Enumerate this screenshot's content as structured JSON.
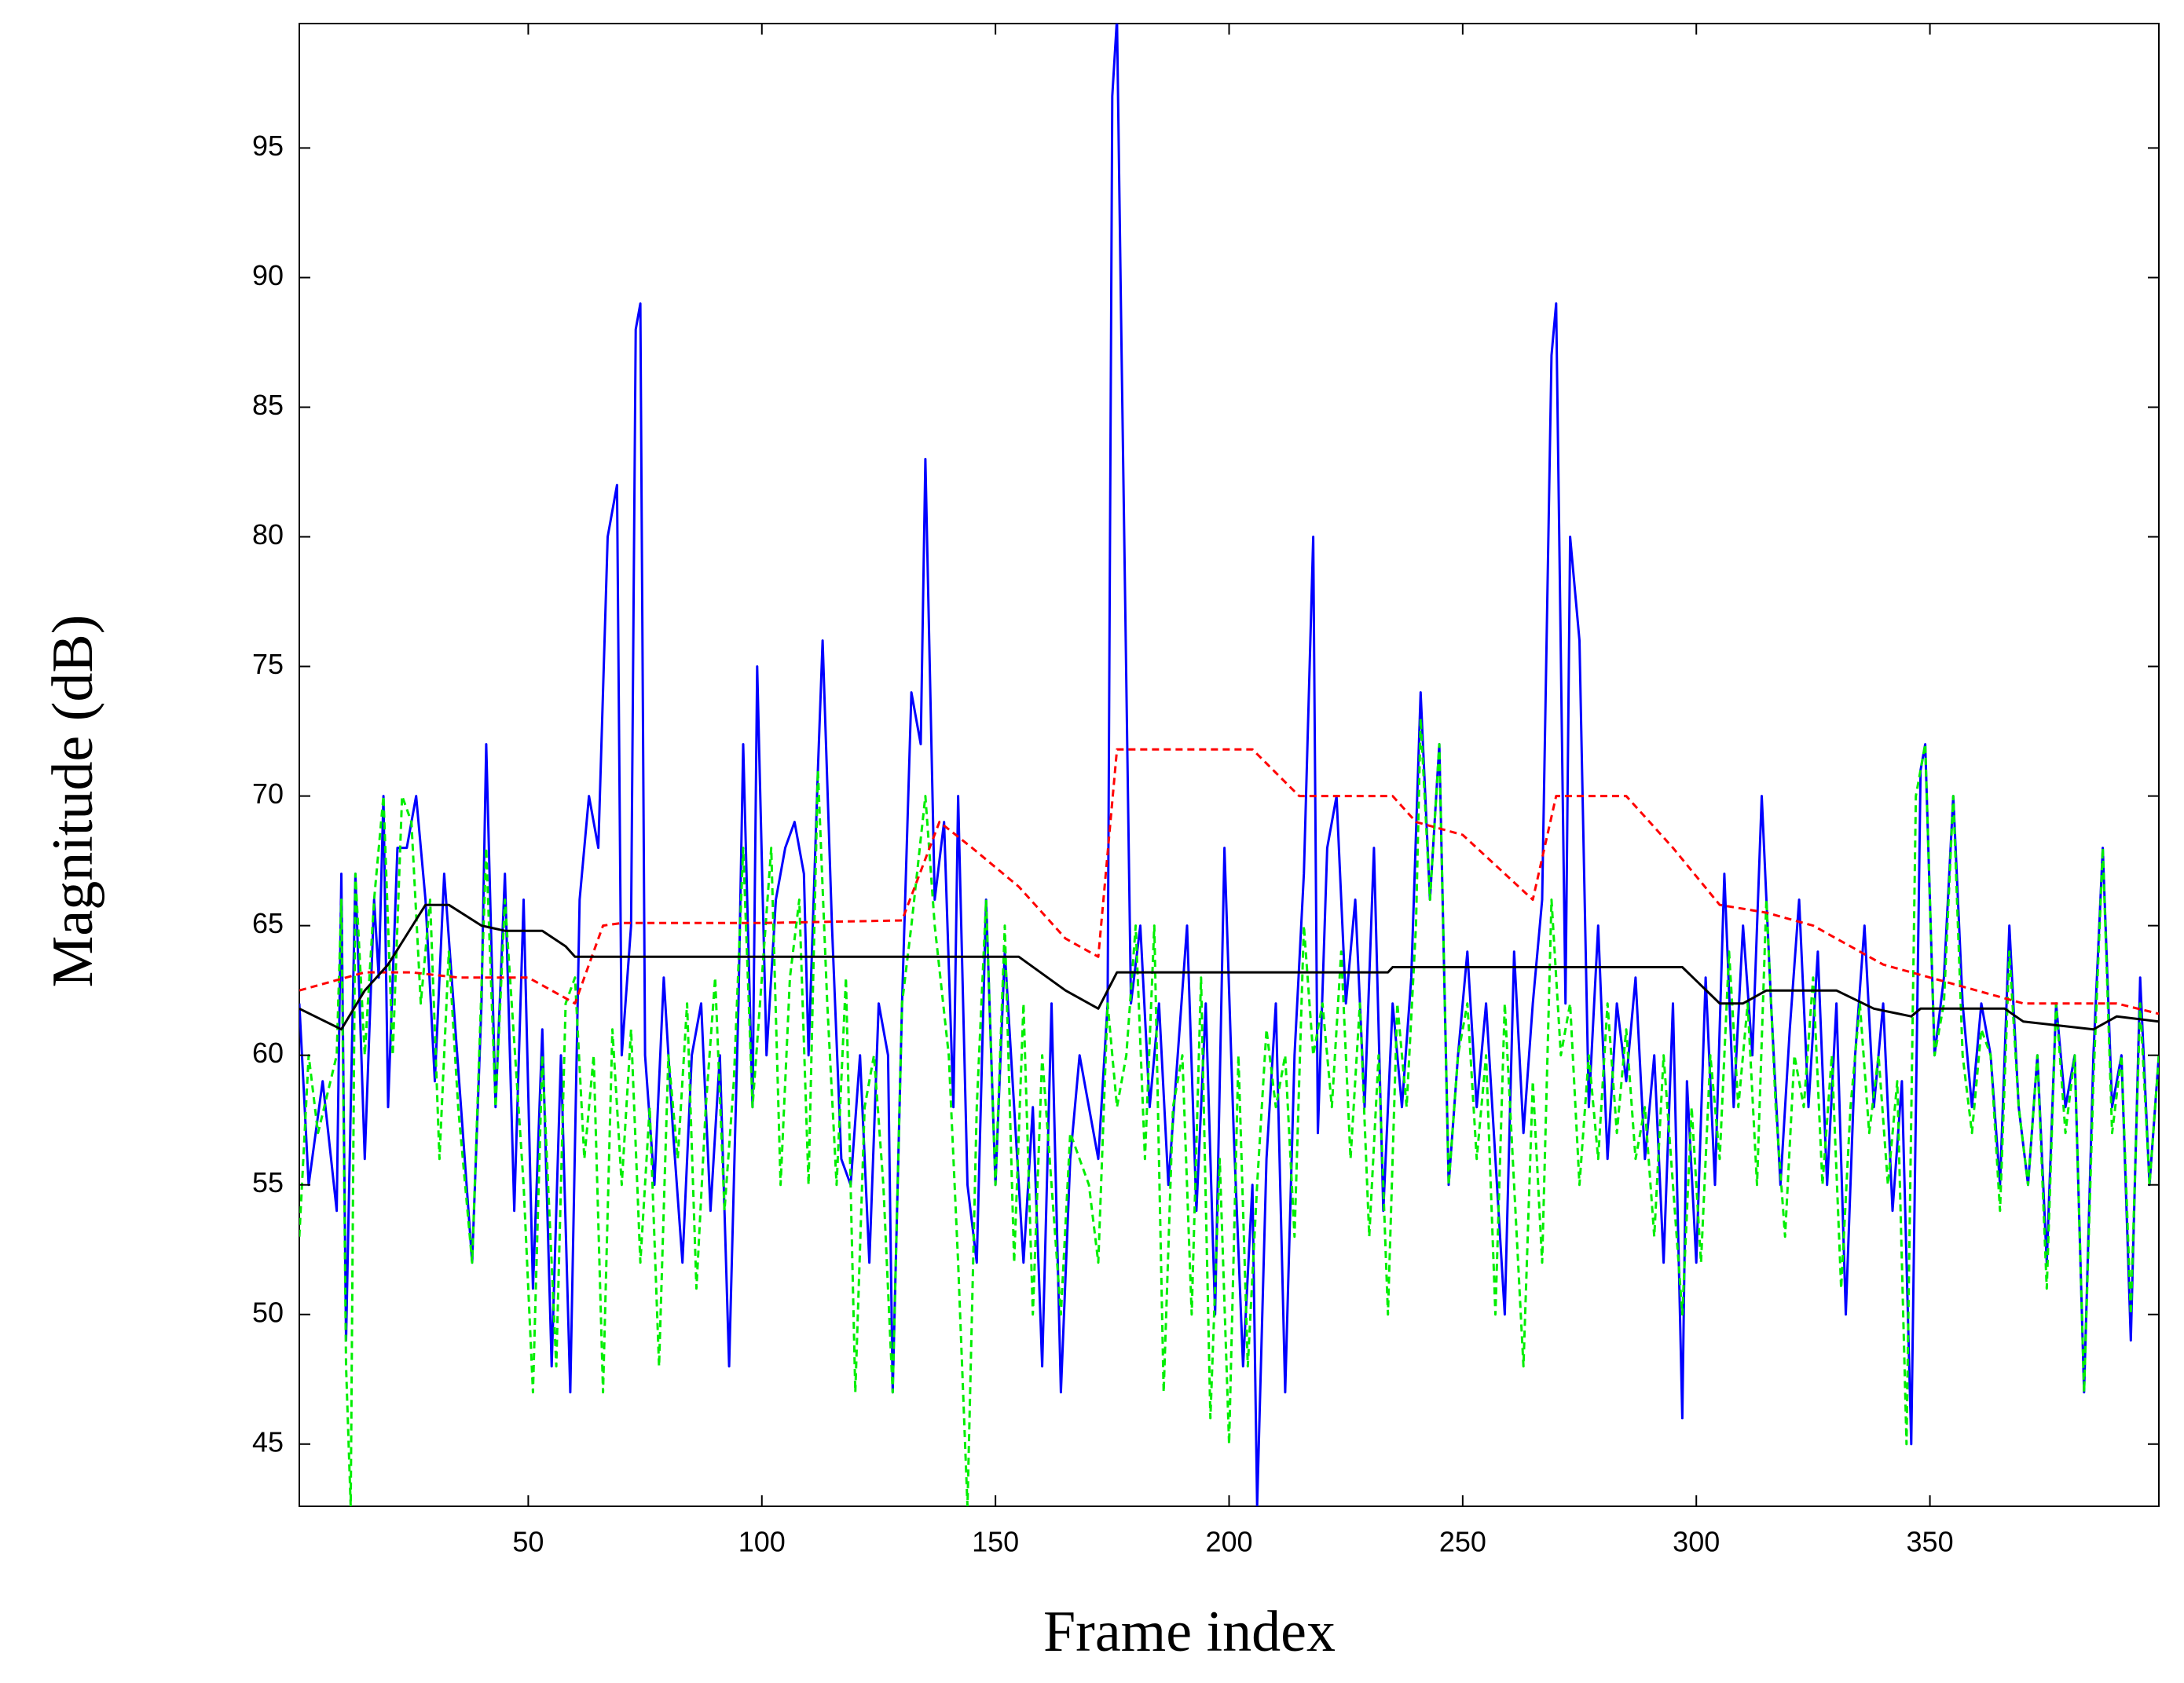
{
  "chart_data": {
    "type": "line",
    "x_label": "Frame index",
    "y_label": "Magnitude (dB)",
    "xlim": [
      1,
      399
    ],
    "ylim": [
      42.6,
      99.8
    ],
    "xticks": [
      50,
      100,
      150,
      200,
      250,
      300,
      350
    ],
    "yticks": [
      45,
      50,
      55,
      60,
      65,
      70,
      75,
      80,
      85,
      90,
      95
    ],
    "grid": false,
    "series": [
      {
        "color": "#0000ff",
        "line_style": "solid",
        "x": [
          1,
          3,
          6,
          9,
          10,
          11,
          13,
          15,
          17,
          18,
          19,
          20,
          22,
          24,
          26,
          28,
          30,
          32,
          34,
          36,
          38,
          40,
          41,
          43,
          45,
          47,
          49,
          51,
          53,
          55,
          57,
          59,
          61,
          63,
          65,
          67,
          69,
          70,
          72,
          73,
          74,
          75,
          77,
          79,
          81,
          83,
          85,
          87,
          89,
          91,
          93,
          95,
          96,
          98,
          99,
          101,
          103,
          105,
          107,
          109,
          110,
          112,
          113,
          115,
          117,
          119,
          121,
          123,
          125,
          127,
          128,
          130,
          132,
          134,
          135,
          137,
          139,
          141,
          142,
          144,
          146,
          148,
          150,
          152,
          154,
          156,
          158,
          160,
          162,
          164,
          166,
          168,
          170,
          172,
          174,
          175,
          176,
          177,
          179,
          181,
          183,
          185,
          187,
          189,
          191,
          193,
          195,
          197,
          199,
          201,
          203,
          205,
          206,
          208,
          210,
          212,
          214,
          216,
          218,
          219,
          221,
          223,
          225,
          227,
          229,
          231,
          233,
          235,
          237,
          239,
          241,
          243,
          245,
          247,
          249,
          251,
          253,
          255,
          257,
          259,
          261,
          263,
          265,
          267,
          269,
          270,
          272,
          273,
          275,
          277,
          279,
          281,
          283,
          285,
          287,
          289,
          291,
          293,
          295,
          297,
          298,
          300,
          302,
          304,
          306,
          308,
          310,
          312,
          314,
          316,
          318,
          320,
          322,
          324,
          326,
          328,
          330,
          332,
          334,
          336,
          338,
          340,
          342,
          344,
          346,
          348,
          349,
          351,
          353,
          355,
          357,
          359,
          361,
          363,
          365,
          367,
          369,
          371,
          373,
          375,
          377,
          379,
          381,
          383,
          385,
          387,
          389,
          391,
          393,
          395,
          397,
          399
        ],
        "values": [
          62,
          55,
          59,
          54,
          67,
          49,
          67,
          56,
          66,
          63,
          70,
          58,
          68,
          68,
          70,
          66,
          59,
          67,
          62,
          57,
          52,
          62,
          72,
          58,
          67,
          54,
          66,
          51,
          61,
          48,
          60,
          47,
          66,
          70,
          68,
          80,
          82,
          60,
          65,
          88,
          89,
          60,
          55,
          63,
          57,
          52,
          60,
          62,
          54,
          60,
          48,
          62,
          72,
          58,
          75,
          60,
          66,
          68,
          69,
          67,
          60,
          71,
          76,
          65,
          56,
          55,
          60,
          52,
          62,
          60,
          47,
          62,
          74,
          72,
          83,
          66,
          69,
          58,
          70,
          55,
          52,
          66,
          55,
          64,
          58,
          52,
          58,
          48,
          62,
          47,
          56,
          60,
          58,
          56,
          62,
          97,
          100,
          87,
          62,
          65,
          58,
          62,
          55,
          60,
          65,
          54,
          62,
          50,
          68,
          57,
          48,
          55,
          42.6,
          56,
          62,
          47,
          60,
          67,
          80,
          57,
          68,
          70,
          62,
          66,
          58,
          68,
          54,
          62,
          58,
          63,
          74,
          66,
          72,
          55,
          60,
          64,
          58,
          62,
          56,
          50,
          64,
          57,
          62,
          66,
          87,
          89,
          62,
          80,
          76,
          58,
          65,
          56,
          62,
          59,
          63,
          56,
          60,
          52,
          62,
          46,
          59,
          52,
          63,
          55,
          67,
          58,
          65,
          60,
          70,
          62,
          55,
          61,
          66,
          58,
          64,
          55,
          62,
          50,
          60,
          65,
          58,
          62,
          54,
          59,
          45,
          71,
          72,
          60,
          63,
          70,
          62,
          58,
          62,
          60,
          55,
          65,
          58,
          55,
          60,
          52,
          62,
          58,
          60,
          47,
          60,
          68,
          58,
          60,
          49,
          63,
          55,
          60
        ]
      },
      {
        "color": "#00ee00",
        "line_style": "dashed",
        "x": [
          1,
          3,
          5,
          9,
          10,
          11,
          12,
          13,
          15,
          17,
          19,
          21,
          23,
          25,
          27,
          29,
          31,
          33,
          35,
          38,
          41,
          43,
          45,
          49,
          51,
          53,
          56,
          58,
          60,
          62,
          64,
          66,
          68,
          70,
          72,
          74,
          76,
          78,
          80,
          82,
          84,
          86,
          88,
          90,
          92,
          94,
          96,
          98,
          100,
          102,
          104,
          106,
          108,
          110,
          112,
          114,
          116,
          118,
          120,
          122,
          124,
          126,
          128,
          130,
          132,
          135,
          137,
          140,
          142,
          144,
          146,
          148,
          150,
          152,
          154,
          156,
          158,
          160,
          164,
          166,
          168,
          170,
          172,
          174,
          176,
          178,
          180,
          182,
          184,
          186,
          188,
          190,
          192,
          194,
          196,
          198,
          200,
          202,
          204,
          206,
          208,
          210,
          212,
          214,
          216,
          218,
          220,
          222,
          224,
          226,
          228,
          230,
          232,
          234,
          236,
          238,
          240,
          241,
          243,
          245,
          247,
          249,
          251,
          253,
          255,
          257,
          259,
          261,
          263,
          265,
          267,
          269,
          271,
          273,
          275,
          277,
          279,
          281,
          283,
          285,
          287,
          289,
          291,
          293,
          295,
          297,
          299,
          301,
          303,
          305,
          307,
          309,
          311,
          313,
          315,
          317,
          319,
          321,
          323,
          325,
          327,
          329,
          331,
          333,
          335,
          337,
          339,
          341,
          343,
          345,
          347,
          349,
          351,
          353,
          355,
          357,
          359,
          361,
          363,
          365,
          367,
          369,
          371,
          373,
          375,
          377,
          379,
          381,
          383,
          385,
          387,
          389,
          391,
          393,
          395,
          397,
          399
        ],
        "values": [
          53,
          60,
          57,
          60,
          66,
          48,
          42.6,
          67,
          60,
          66,
          70,
          60,
          70,
          69,
          62,
          66,
          56,
          64,
          58,
          52,
          68,
          58,
          66,
          55,
          47,
          60,
          48,
          62,
          63,
          56,
          60,
          47,
          61,
          55,
          61,
          52,
          58,
          48,
          60,
          56,
          62,
          51,
          58,
          63,
          54,
          59,
          68,
          58,
          63,
          68,
          55,
          63,
          66,
          55,
          71,
          62,
          55,
          63,
          47,
          58,
          60,
          55,
          47,
          62,
          65,
          70,
          65,
          60,
          52,
          42.6,
          58,
          66,
          55,
          65,
          52,
          62,
          50,
          60,
          50,
          57,
          56,
          55,
          52,
          62,
          58,
          60,
          65,
          56,
          65,
          47,
          58,
          60,
          50,
          63,
          46,
          56,
          45,
          60,
          48,
          55,
          61,
          58,
          60,
          53,
          65,
          60,
          62,
          58,
          64,
          56,
          62,
          53,
          60,
          50,
          62,
          58,
          65,
          73,
          66,
          72,
          55,
          60,
          62,
          56,
          60,
          50,
          62,
          55,
          48,
          59,
          52,
          66,
          60,
          62,
          55,
          60,
          56,
          62,
          57,
          61,
          56,
          58,
          53,
          60,
          55,
          50,
          58,
          52,
          60,
          56,
          64,
          58,
          62,
          55,
          66,
          58,
          53,
          60,
          58,
          63,
          55,
          60,
          51,
          58,
          62,
          57,
          60,
          55,
          59,
          45,
          70,
          72,
          60,
          62,
          70,
          60,
          57,
          61,
          60,
          54,
          64,
          58,
          55,
          60,
          51,
          62,
          57,
          60,
          47,
          59,
          68,
          57,
          60,
          50,
          62,
          55,
          60
        ]
      },
      {
        "color": "#ff0000",
        "line_style": "dashed",
        "x": [
          1,
          15,
          25,
          35,
          50,
          55,
          60,
          66,
          70,
          100,
          130,
          138,
          145,
          155,
          165,
          172,
          176,
          205,
          215,
          235,
          240,
          250,
          265,
          270,
          285,
          295,
          305,
          315,
          325,
          340,
          350,
          370,
          380,
          390,
          399
        ],
        "values": [
          62.5,
          63.2,
          63.2,
          63,
          63,
          62.5,
          62,
          65,
          65.1,
          65.1,
          65.2,
          69,
          68,
          66.5,
          64.5,
          63.8,
          71.8,
          71.8,
          70,
          70,
          69,
          68.5,
          66,
          70,
          70,
          68,
          65.8,
          65.5,
          65,
          63.5,
          63,
          62,
          62,
          62,
          61.6
        ]
      },
      {
        "color": "#000000",
        "line_style": "solid",
        "x": [
          1,
          10,
          15,
          20,
          28,
          33,
          40,
          45,
          53,
          58,
          60,
          155,
          165,
          172,
          176,
          234,
          235,
          297,
          305,
          310,
          315,
          330,
          338,
          346,
          348,
          366,
          370,
          385,
          390,
          399
        ],
        "values": [
          61.8,
          61,
          62.5,
          63.5,
          65.8,
          65.8,
          65,
          64.8,
          64.8,
          64.2,
          63.8,
          63.8,
          62.5,
          61.8,
          63.2,
          63.2,
          63.4,
          63.4,
          62,
          62,
          62.5,
          62.5,
          61.8,
          61.5,
          61.8,
          61.8,
          61.3,
          61,
          61.5,
          61.3
        ]
      }
    ]
  }
}
